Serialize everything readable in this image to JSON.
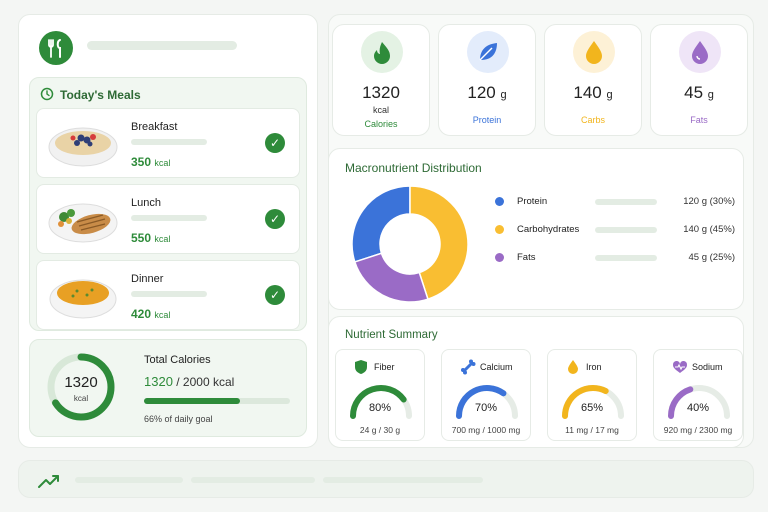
{
  "meals": {
    "title": "Today's Meals",
    "items": [
      {
        "name": "Breakfast",
        "kcal": "350",
        "unit": "kcal",
        "image": "oatmeal-berries-bowl"
      },
      {
        "name": "Lunch",
        "kcal": "550",
        "unit": "kcal",
        "image": "grilled-chicken-vegetables"
      },
      {
        "name": "Dinner",
        "kcal": "420",
        "unit": "kcal",
        "image": "pumpkin-soup-bowl"
      }
    ]
  },
  "total": {
    "label": "Total Calories",
    "ring_value": "1320",
    "ring_unit": "kcal",
    "current": "1320",
    "goal": "/ 2000 kcal",
    "progress": 0.66,
    "goal_text": "66% of daily goal"
  },
  "stats": [
    {
      "value": "1320",
      "unit": "kcal",
      "label": "Calories",
      "color": "#2e8b3a",
      "bg": "#e4f2e4",
      "icon": "flame-icon"
    },
    {
      "value": "120",
      "unit": "g",
      "label": "Protein",
      "color": "#3b73d9",
      "bg": "#e3ecfb",
      "icon": "leaf-icon"
    },
    {
      "value": "140",
      "unit": "g",
      "label": "Carbs",
      "color": "#f2b51d",
      "bg": "#fdf1d6",
      "icon": "drop-icon"
    },
    {
      "value": "45",
      "unit": "g",
      "label": "Fats",
      "color": "#9a6bc6",
      "bg": "#efe5f7",
      "icon": "drop-icon"
    }
  ],
  "macro": {
    "title": "Macronutrient Distribution",
    "legend": [
      {
        "name": "Protein",
        "value": "120 g (30%)"
      },
      {
        "name": "Carbohydrates",
        "value": "140 g (45%)"
      },
      {
        "name": "Fats",
        "value": "45 g (25%)"
      }
    ]
  },
  "chart_data": {
    "type": "pie",
    "categories": [
      "Protein",
      "Carbohydrates",
      "Fats"
    ],
    "values": [
      30,
      45,
      25
    ],
    "colors": [
      "#3b73d9",
      "#f9be32",
      "#9a6bc6"
    ]
  },
  "nutrients": {
    "title": "Nutrient Summary",
    "items": [
      {
        "name": "Fiber",
        "pct": "80%",
        "frac": 0.8,
        "amount": "24 g / 30 g",
        "color": "#2e8b3a",
        "icon": "shield-icon"
      },
      {
        "name": "Calcium",
        "pct": "70%",
        "frac": 0.7,
        "amount": "700 mg / 1000 mg",
        "color": "#3b73d9",
        "icon": "bone-icon"
      },
      {
        "name": "Iron",
        "pct": "65%",
        "frac": 0.65,
        "amount": "11 mg / 17 mg",
        "color": "#f2b51d",
        "icon": "drop-icon"
      },
      {
        "name": "Sodium",
        "pct": "40%",
        "frac": 0.4,
        "amount": "920 mg / 2300 mg",
        "color": "#9a6bc6",
        "icon": "heart-pulse-icon"
      }
    ]
  }
}
